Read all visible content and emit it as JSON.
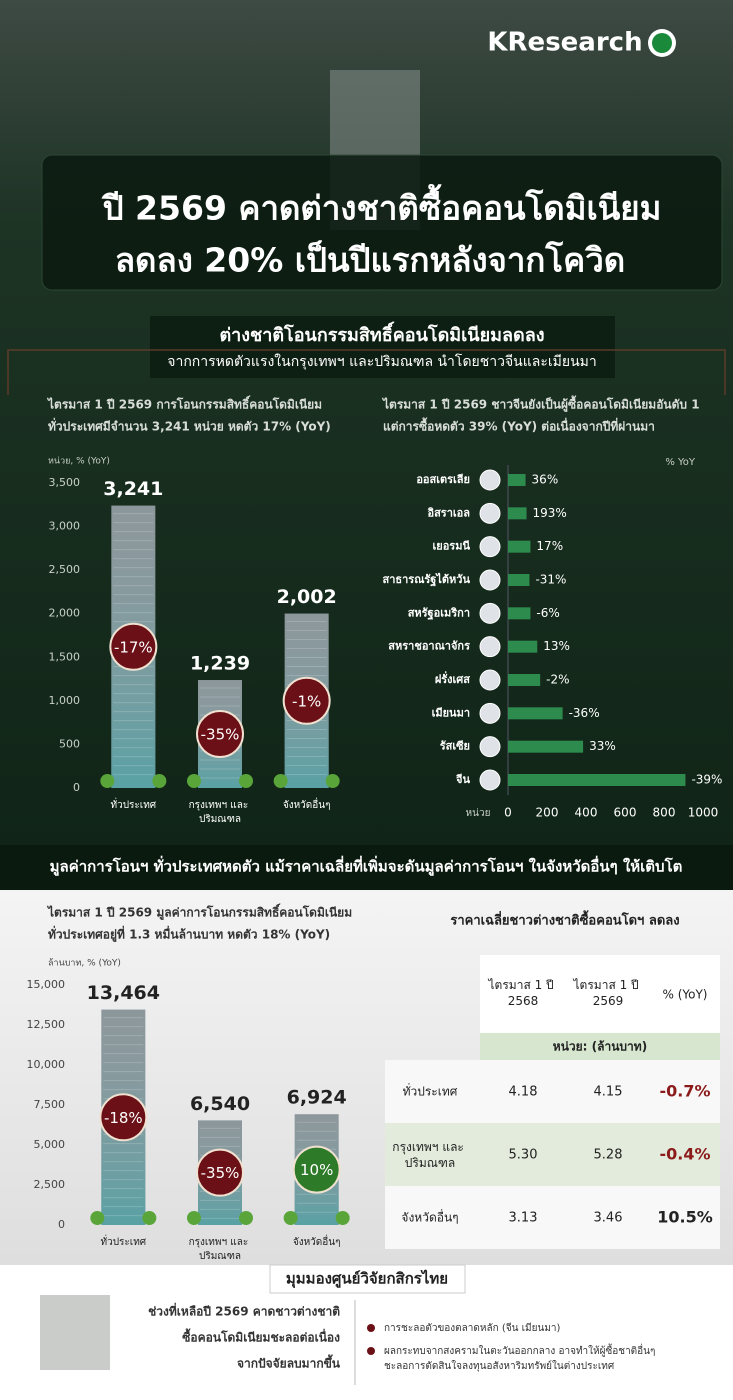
{
  "header": {
    "brand": "KResearch",
    "title": [
      "ปี 2569 คาดต่างชาติซื้อคอนโดมิเนียม",
      "ลดลง 20% เป็นปีแรกหลังจากโควิด"
    ]
  },
  "section1": {
    "title": "ต่างชาติโอนกรรมสิทธิ์คอนโดมิเนียมลดลง",
    "subtitle": "จากการหดตัวแรงในกรุงเทพฯ และปริมณฑล นำโดยชาวจีนและเมียนมา"
  },
  "section2": {
    "title": "มูลค่าการโอนฯ ทั่วประเทศหดตัว แม้ราคาเฉลี่ยที่เพิ่มจะดันมูลค่าการโอนฯ ในจังหวัดอื่นๆ ให้เติบโต"
  },
  "chart_data": [
    {
      "type": "bar",
      "orientation": "vertical",
      "note": [
        "ไตรมาส 1 ปี 2569 การโอนกรรมสิทธิ์คอนโดมิเนียม",
        "ทั่วประเทศมีจำนวน 3,241 หน่วย หดตัว 17% (YoY)"
      ],
      "y_label": "หน่วย, % (YoY)",
      "categories": [
        "ทั่วประเทศ",
        "กรุงเทพฯ และ ปริมณฑล",
        "จังหวัดอื่นๆ"
      ],
      "values": [
        3241,
        1239,
        2002
      ],
      "value_labels": [
        "3,241",
        "1,239",
        "2,002"
      ],
      "color": "#8c979b",
      "yoy": {
        "values": [
          -17,
          -35,
          -1
        ],
        "value_labels": [
          "-17%",
          "-35%",
          "-1%"
        ]
      },
      "ylim": [
        0,
        3500
      ],
      "yticks": [
        0,
        500,
        {
          "value": 1000,
          "label": "1,000"
        },
        {
          "value": 1500,
          "label": "1,500"
        },
        {
          "value": 2000,
          "label": "2,000"
        },
        {
          "value": 2500,
          "label": "2,500"
        },
        {
          "value": 3000,
          "label": "3,000"
        },
        {
          "value": 3500,
          "label": "3,500"
        }
      ]
    },
    {
      "type": "bar",
      "orientation": "horizontal",
      "note": [
        "ไตรมาส 1 ปี 2569 ชาวจีนยังเป็นผู้ซื้อคอนโดมิเนียมอันดับ 1",
        "แต่การซื้อหดตัว 39% (YoY) ต่อเนื่องจากปีที่ผ่านมา"
      ],
      "x_label": "หน่วย",
      "pct_label": "% YoY",
      "categories": [
        "ออสเตรเลีย",
        "อิสราเอล",
        "เยอรมนี",
        "สาธารณรัฐไต้หวัน",
        "สหรัฐอเมริกา",
        "สหราชอาณาจักร",
        "ฝรั่งเศส",
        "เมียนมา",
        "รัสเซีย",
        "จีน"
      ],
      "values": [
        90,
        95,
        115,
        110,
        115,
        150,
        165,
        280,
        385,
        910
      ],
      "color": "#2e8b4e",
      "yoy": {
        "values": [
          36,
          193,
          17,
          -31,
          -6,
          13,
          -2,
          -36,
          33,
          -39
        ],
        "value_labels": [
          "36%",
          "193%",
          "17%",
          "-31%",
          "-6%",
          "13%",
          "-2%",
          "-36%",
          "33%",
          "-39%"
        ]
      },
      "xlim": [
        0,
        1000
      ],
      "xticks": [
        0,
        200,
        400,
        600,
        800,
        1000
      ]
    },
    {
      "type": "bar",
      "orientation": "vertical",
      "note": [
        "ไตรมาส 1 ปี 2569 มูลค่าการโอนกรรมสิทธิ์คอนโดมิเนียม",
        "ทั่วประเทศอยู่ที่ 1.3 หมื่นล้านบาท หดตัว 18% (YoY)"
      ],
      "y_label": "ล้านบาท, % (YoY)",
      "categories": [
        "ทั่วประเทศ",
        "กรุงเทพฯ และ ปริมณฑล",
        "จังหวัดอื่นๆ"
      ],
      "values": [
        13464,
        6540,
        6924
      ],
      "value_labels": [
        "13,464",
        "6,540",
        "6,924"
      ],
      "color": "#8c979b",
      "yoy": {
        "values": [
          -18,
          -35,
          10
        ],
        "value_labels": [
          "-18%",
          "-35%",
          "10%"
        ]
      },
      "ylim": [
        0,
        15000
      ],
      "yticks": [
        0,
        {
          "value": 2500,
          "label": "2,500"
        },
        {
          "value": 5000,
          "label": "5,000"
        },
        {
          "value": 7500,
          "label": "7,500"
        },
        {
          "value": 10000,
          "label": "10,000"
        },
        {
          "value": 12500,
          "label": "12,500"
        },
        {
          "value": 15000,
          "label": "15,000"
        }
      ]
    }
  ],
  "table": {
    "title": "ราคาเฉลี่ยชาวต่างชาติซื้อคอนโดฯ ลดลง",
    "header": [
      "ไตรมาส 1 ปี 2568",
      "ไตรมาส 1 ปี 2569",
      "% (YoY)"
    ],
    "unit": "หน่วย: (ล้านบาท)",
    "rows": [
      [
        "ทั่วประเทศ",
        "4.18",
        "4.15",
        "-0.7%"
      ],
      [
        "กรุงเทพฯ และ ปริมณฑล",
        "5.30",
        "5.28",
        "-0.4%"
      ],
      [
        "จังหวัดอื่นๆ",
        "3.13",
        "3.46",
        "10.5%"
      ]
    ]
  },
  "outlook": {
    "title": "มุมมองศูนย์วิจัยกสิกรไทย",
    "summary": [
      "ช่วงที่เหลือปี 2569 คาดชาวต่างชาติ",
      "ซื้อคอนโดมิเนียมชะลอต่อเนื่อง",
      "จากปัจจัยลบมากขึ้น"
    ],
    "bullets": [
      [
        "การชะลอตัวของตลาดหลัก (จีน เมียนมา)"
      ],
      [
        "ผลกระทบจากสงครามในตะวันออกกลาง อาจทำให้ผู้ซื้อชาติอื่นๆ",
        "ชะลอการตัดสินใจลงทุนอสังหาริมทรัพย์ในต่างประเทศ"
      ]
    ]
  }
}
